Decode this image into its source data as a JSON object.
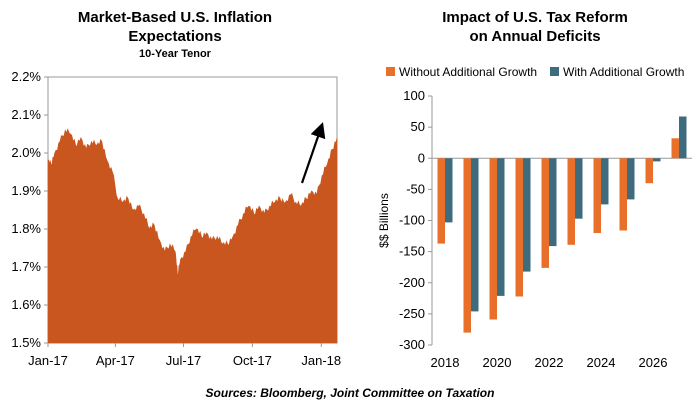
{
  "chart_data": [
    {
      "type": "area",
      "title": "Market-Based U.S. Inflation Expectations",
      "subtitle": "10-Year Tenor",
      "y_ticks": [
        "2.2%",
        "2.1%",
        "2.0%",
        "1.9%",
        "1.8%",
        "1.7%",
        "1.6%",
        "1.5%"
      ],
      "x_ticks": [
        "Jan-17",
        "Apr-17",
        "Jul-17",
        "Oct-17",
        "Jan-18"
      ],
      "ylim": [
        1.5,
        2.2
      ],
      "color": "#C8561E",
      "series": [
        {
          "x": [
            "2017-01-01",
            "2017-01-05",
            "2017-01-10",
            "2017-01-17",
            "2017-01-24",
            "2017-01-31",
            "2017-02-07",
            "2017-02-14",
            "2017-02-21",
            "2017-02-28",
            "2017-03-07",
            "2017-03-14",
            "2017-03-21",
            "2017-03-28",
            "2017-04-04",
            "2017-04-11",
            "2017-04-18",
            "2017-04-25",
            "2017-05-02",
            "2017-05-09",
            "2017-05-16",
            "2017-05-23",
            "2017-05-30",
            "2017-06-06",
            "2017-06-13",
            "2017-06-20",
            "2017-06-23",
            "2017-06-27",
            "2017-07-04",
            "2017-07-11",
            "2017-07-18",
            "2017-07-25",
            "2017-08-01",
            "2017-08-08",
            "2017-08-15",
            "2017-08-22",
            "2017-08-29",
            "2017-09-05",
            "2017-09-12",
            "2017-09-19",
            "2017-09-26",
            "2017-10-03",
            "2017-10-10",
            "2017-10-17",
            "2017-10-24",
            "2017-10-31",
            "2017-11-07",
            "2017-11-14",
            "2017-11-21",
            "2017-11-28",
            "2017-12-05",
            "2017-12-12",
            "2017-12-19",
            "2017-12-26",
            "2018-01-02",
            "2018-01-09",
            "2018-01-16",
            "2018-01-22"
          ],
          "values": [
            1.98,
            1.97,
            2.0,
            2.03,
            2.06,
            2.05,
            2.02,
            2.04,
            2.01,
            2.03,
            2.02,
            2.03,
            1.98,
            1.95,
            1.88,
            1.87,
            1.88,
            1.85,
            1.86,
            1.84,
            1.8,
            1.81,
            1.77,
            1.74,
            1.76,
            1.74,
            1.68,
            1.72,
            1.74,
            1.78,
            1.8,
            1.78,
            1.79,
            1.77,
            1.78,
            1.76,
            1.76,
            1.78,
            1.81,
            1.84,
            1.86,
            1.84,
            1.86,
            1.84,
            1.86,
            1.87,
            1.88,
            1.87,
            1.89,
            1.87,
            1.86,
            1.88,
            1.9,
            1.89,
            1.94,
            1.97,
            2.01,
            2.04
          ]
        }
      ],
      "annotation": "up-arrow"
    },
    {
      "type": "bar",
      "title": "Impact of U.S. Tax Reform on Annual Deficits",
      "ylabel": "$$ Billions",
      "categories": [
        "2018",
        "2019",
        "2020",
        "2021",
        "2022",
        "2023",
        "2024",
        "2025",
        "2026",
        "2027"
      ],
      "x_tick_labels": [
        "2018",
        "2020",
        "2022",
        "2024",
        "2026"
      ],
      "y_ticks": [
        "100",
        "50",
        "0",
        "-50",
        "-100",
        "-150",
        "-200",
        "-250",
        "-300"
      ],
      "ylim": [
        -300,
        100
      ],
      "legend_position": "top",
      "series": [
        {
          "name": "Without Additional Growth",
          "color": "#E8702A",
          "values": [
            -137,
            -280,
            -259,
            -222,
            -176,
            -139,
            -120,
            -116,
            -40,
            32
          ]
        },
        {
          "name": "With Additional Growth",
          "color": "#3F6B7E",
          "values": [
            -103,
            -246,
            -221,
            -182,
            -141,
            -97,
            -74,
            -66,
            -5,
            67
          ]
        }
      ]
    }
  ],
  "footer": {
    "sources": "Sources: Bloomberg, Joint Committee on Taxation"
  }
}
